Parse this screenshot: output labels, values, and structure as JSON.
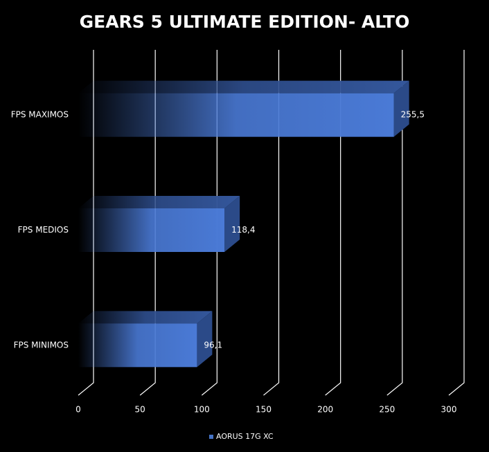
{
  "chart_data": {
    "type": "bar3d",
    "orientation": "horizontal",
    "title": "GEARS 5 ULTIMATE EDITION- ALTO",
    "categories": [
      "FPS MAXIMOS",
      "FPS MEDIOS",
      "FPS MINIMOS"
    ],
    "series": [
      {
        "name": "AORUS 17G XC",
        "color": "#4472c4",
        "values": [
          255.5,
          118.4,
          96.1
        ],
        "value_labels": [
          "255,5",
          "118,4",
          "96,1"
        ]
      }
    ],
    "xlim": [
      0,
      300
    ],
    "xticks": [
      0,
      50,
      100,
      150,
      200,
      250,
      300
    ],
    "grid": true,
    "legend": "bottom"
  }
}
